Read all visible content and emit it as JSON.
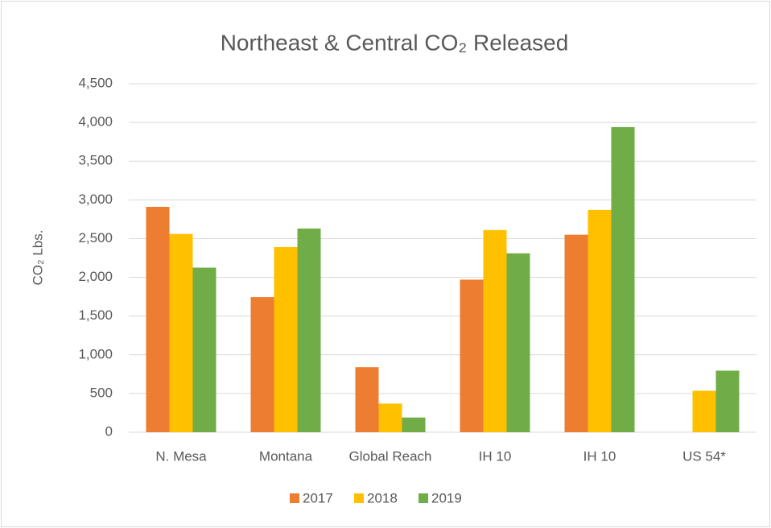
{
  "chart_data": {
    "type": "bar",
    "title": "Northeast & Central CO₂ Released",
    "y_label": "CO₂ Lbs.",
    "categories": [
      "N. Mesa",
      "Montana",
      "Global Reach",
      "IH 10",
      "IH 10",
      "US 54*"
    ],
    "series": [
      {
        "name": "2017",
        "color": "#ed7d31",
        "values": [
          2910,
          1745,
          840,
          1970,
          2550,
          null
        ]
      },
      {
        "name": "2018",
        "color": "#ffc000",
        "values": [
          2560,
          2390,
          370,
          2610,
          2870,
          535
        ]
      },
      {
        "name": "2019",
        "color": "#70ad47",
        "values": [
          2125,
          2630,
          190,
          2310,
          3940,
          795
        ]
      }
    ],
    "ylim": [
      0,
      4500
    ],
    "yticks": [
      0,
      500,
      {
        "value": 1000,
        "label": "1,000"
      },
      {
        "value": 1500,
        "label": "1,500"
      },
      {
        "value": 2000,
        "label": "2,000"
      },
      {
        "value": 2500,
        "label": "2,500"
      },
      {
        "value": 3000,
        "label": "3,000"
      },
      {
        "value": 3500,
        "label": "3,500"
      },
      {
        "value": 4000,
        "label": "4,000"
      },
      {
        "value": 4500,
        "label": "4,500"
      }
    ],
    "grid": true,
    "legend": "bottom"
  }
}
